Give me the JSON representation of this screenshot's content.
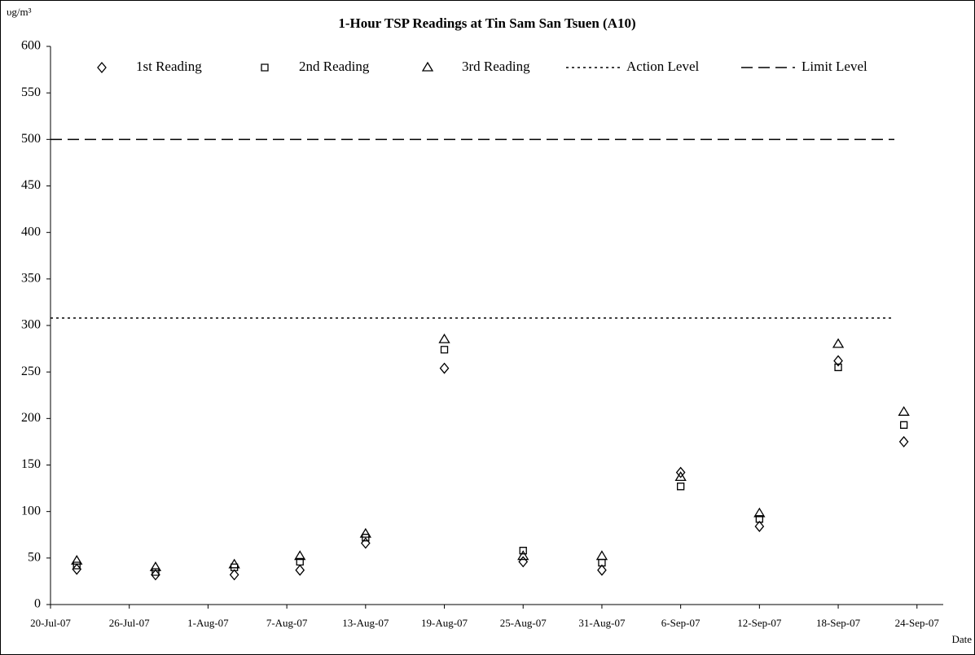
{
  "chart_data": {
    "type": "scatter",
    "title": "1-Hour TSP Readings at Tin Sam San Tsuen (A10)",
    "y_label": "υg/m³",
    "x_label": "Date",
    "x": [
      "2007-07-22",
      "2007-07-28",
      "2007-08-03",
      "2007-08-08",
      "2007-08-13",
      "2007-08-19",
      "2007-08-25",
      "2007-08-31",
      "2007-09-06",
      "2007-09-12",
      "2007-09-18",
      "2007-09-23"
    ],
    "series": [
      {
        "name": "1st Reading",
        "color": "#000000",
        "marker": "diamond",
        "values": [
          38,
          32,
          32,
          37,
          66,
          254,
          46,
          37,
          142,
          84,
          262,
          175
        ]
      },
      {
        "name": "2nd Reading",
        "color": "#000000",
        "marker": "square",
        "values": [
          42,
          35,
          40,
          46,
          72,
          274,
          58,
          45,
          127,
          92,
          255,
          193
        ]
      },
      {
        "name": "3rd Reading",
        "color": "#000000",
        "marker": "triangle",
        "values": [
          47,
          40,
          43,
          52,
          76,
          285,
          52,
          52,
          137,
          98,
          280,
          207
        ]
      }
    ],
    "lines": [
      {
        "name": "Action Level",
        "value": 308,
        "style": "dotted"
      },
      {
        "name": "Limit Level",
        "value": 500,
        "style": "dashed"
      }
    ],
    "xlim": [
      "2007-07-20",
      "2007-09-26"
    ],
    "xticks": [
      {
        "value": "2007-07-20",
        "label": "20-Jul-07"
      },
      {
        "value": "2007-07-26",
        "label": "26-Jul-07"
      },
      {
        "value": "2007-08-01",
        "label": "1-Aug-07"
      },
      {
        "value": "2007-08-07",
        "label": "7-Aug-07"
      },
      {
        "value": "2007-08-13",
        "label": "13-Aug-07"
      },
      {
        "value": "2007-08-19",
        "label": "19-Aug-07"
      },
      {
        "value": "2007-08-25",
        "label": "25-Aug-07"
      },
      {
        "value": "2007-08-31",
        "label": "31-Aug-07"
      },
      {
        "value": "2007-09-06",
        "label": "6-Sep-07"
      },
      {
        "value": "2007-09-12",
        "label": "12-Sep-07"
      },
      {
        "value": "2007-09-18",
        "label": "18-Sep-07"
      },
      {
        "value": "2007-09-24",
        "label": "24-Sep-07"
      }
    ],
    "ylim": [
      0,
      600
    ],
    "yticks": [
      0,
      50,
      100,
      150,
      200,
      250,
      300,
      350,
      400,
      450,
      500,
      550,
      600
    ],
    "grid": false
  }
}
